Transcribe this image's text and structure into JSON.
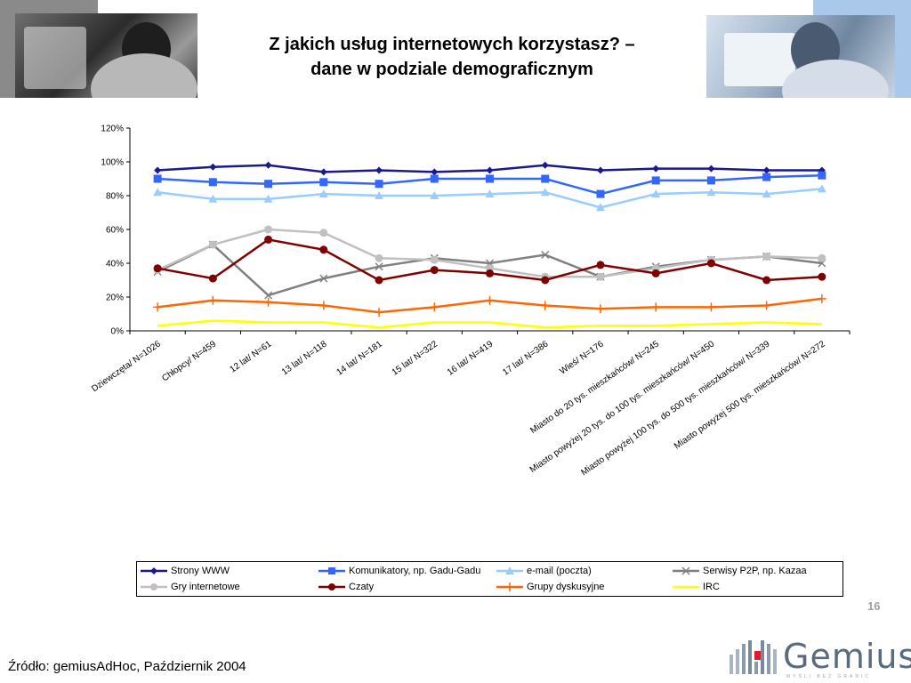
{
  "title": {
    "line1": "Z jakich usług internetowych korzystasz? –",
    "line2": "dane w podziale demograficznym"
  },
  "page_number": "16",
  "source": "Źródło: gemiusAdHoc, Październik 2004",
  "logo": {
    "name": "Gemius",
    "tagline": "MYŚLI BEZ GRANIC"
  },
  "colors": {
    "strony_www": "#1a1a8c",
    "komunikatory": "#3366ff",
    "email": "#99ccff",
    "p2p": "#808080",
    "gry": "#c0c0c0",
    "czaty": "#800000",
    "grupy": "#ff6600",
    "irc": "#ffff00"
  },
  "chart_data": {
    "type": "line",
    "title": "",
    "xlabel": "",
    "ylabel": "",
    "ylim": [
      0,
      120
    ],
    "yticks": [
      "0%",
      "20%",
      "40%",
      "60%",
      "80%",
      "100%",
      "120%"
    ],
    "grid": false,
    "legend_position": "bottom",
    "categories": [
      "Dziewczęta/ N=1026",
      "Chłopcy/ N=459",
      "12 lat/ N=61",
      "13 lat/ N=118",
      "14 lat/ N=181",
      "15 lat/ N=322",
      "16 lat/ N=419",
      "17 lat/ N=386",
      "Wieś/ N=176",
      "Miasto do 20 tys. mieszkańców/ N=245",
      "Miasto powyżej 20 tys. do 100 tys. mieszkańców/ N=450",
      "Miasto powyżej 100 tys. do 500 tys. mieszkańców/ N=339",
      "Miasto powyżej 500 tys. mieszkańców/ N=272"
    ],
    "series": [
      {
        "name": "Strony WWW",
        "color": "#1a1a8c",
        "marker": "diamond",
        "values": [
          95,
          97,
          98,
          94,
          95,
          94,
          95,
          98,
          95,
          96,
          96,
          95,
          95
        ]
      },
      {
        "name": "Komunikatory, np. Gadu-Gadu",
        "color": "#3366ff",
        "marker": "square",
        "values": [
          90,
          88,
          87,
          88,
          87,
          90,
          90,
          90,
          81,
          89,
          89,
          91,
          92
        ]
      },
      {
        "name": "e-mail (poczta)",
        "color": "#99ccff",
        "marker": "triangle",
        "values": [
          82,
          78,
          78,
          81,
          80,
          80,
          81,
          82,
          73,
          81,
          82,
          81,
          84
        ]
      },
      {
        "name": "Serwisy P2P,  np. Kazaa",
        "color": "#808080",
        "marker": "x",
        "values": [
          35,
          51,
          21,
          31,
          38,
          43,
          40,
          45,
          32,
          38,
          42,
          44,
          40
        ]
      },
      {
        "name": "Gry internetowe",
        "color": "#c0c0c0",
        "marker": "circle",
        "values": [
          36,
          51,
          60,
          58,
          43,
          42,
          37,
          32,
          32,
          37,
          42,
          44,
          43
        ]
      },
      {
        "name": "Czaty",
        "color": "#800000",
        "marker": "circle",
        "values": [
          37,
          31,
          54,
          48,
          30,
          36,
          34,
          30,
          39,
          34,
          40,
          30,
          32
        ]
      },
      {
        "name": "Grupy dyskusyjne",
        "color": "#ff6600",
        "marker": "plus",
        "values": [
          14,
          18,
          17,
          15,
          11,
          14,
          18,
          15,
          13,
          14,
          14,
          15,
          19
        ]
      },
      {
        "name": "IRC",
        "color": "#ffff00",
        "marker": "none",
        "values": [
          3,
          6,
          5,
          5,
          2,
          5,
          5,
          2,
          3,
          3,
          4,
          5,
          4
        ]
      }
    ]
  }
}
